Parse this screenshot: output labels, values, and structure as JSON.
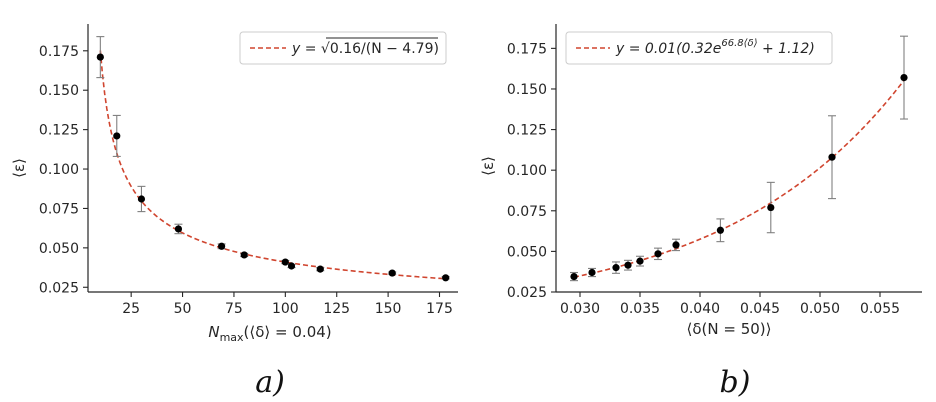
{
  "colors": {
    "fit": "#d0452f",
    "points": "#000000",
    "errorbars": "#808080",
    "axis": "#262626"
  },
  "chart_data": [
    {
      "type": "scatter",
      "panel": "a)",
      "xlabel": "N_max(⟨δ⟩ = 0.04)",
      "ylabel": "⟨ε⟩",
      "xlim": [
        4,
        184
      ],
      "ylim": [
        0.022,
        0.192
      ],
      "xticks": [
        25,
        50,
        75,
        100,
        125,
        150,
        175
      ],
      "xtick_labels": [
        "25",
        "50",
        "75",
        "100",
        "125",
        "150",
        "175"
      ],
      "yticks": [
        0.025,
        0.05,
        0.075,
        0.1,
        0.125,
        0.15,
        0.175
      ],
      "ytick_labels": [
        "0.025",
        "0.050",
        "0.075",
        "0.100",
        "0.125",
        "0.150",
        "0.175"
      ],
      "legend_position": "top-right",
      "legend_label": "y = √0.16/(N − 4.79)",
      "fit": {
        "formula": "sqrt(0.16/(N-4.79))",
        "a": 0.16,
        "b": 4.79
      },
      "points": [
        {
          "x": 10,
          "y": 0.171,
          "err": 0.013
        },
        {
          "x": 18,
          "y": 0.121,
          "err": 0.013
        },
        {
          "x": 30,
          "y": 0.081,
          "err": 0.008
        },
        {
          "x": 48,
          "y": 0.062,
          "err": 0.003
        },
        {
          "x": 69,
          "y": 0.051,
          "err": 0.0015
        },
        {
          "x": 80,
          "y": 0.0455,
          "err": 0.001
        },
        {
          "x": 100,
          "y": 0.041,
          "err": 0.001
        },
        {
          "x": 103,
          "y": 0.0385,
          "err": 0.001
        },
        {
          "x": 117,
          "y": 0.0365,
          "err": 0.001
        },
        {
          "x": 152,
          "y": 0.034,
          "err": 0.0007
        },
        {
          "x": 178,
          "y": 0.031,
          "err": 0.0007
        }
      ]
    },
    {
      "type": "scatter",
      "panel": "b)",
      "xlabel": "⟨δ(N = 50)⟩",
      "ylabel": "⟨ε⟩",
      "xlim": [
        0.028,
        0.0585
      ],
      "ylim": [
        0.025,
        0.19
      ],
      "xticks": [
        0.03,
        0.035,
        0.04,
        0.045,
        0.05,
        0.055
      ],
      "xtick_labels": [
        "0.030",
        "0.035",
        "0.040",
        "0.045",
        "0.050",
        "0.055"
      ],
      "yticks": [
        0.025,
        0.05,
        0.075,
        0.1,
        0.125,
        0.15,
        0.175
      ],
      "ytick_labels": [
        "0.025",
        "0.050",
        "0.075",
        "0.100",
        "0.125",
        "0.150",
        "0.175"
      ],
      "legend_position": "top-left",
      "legend_label": "y = 0.01(0.32e^{66.8⟨δ⟩} + 1.12)",
      "fit": {
        "formula": "0.01*(0.32*exp(66.8*d)+1.12)",
        "c": 0.01,
        "a": 0.32,
        "k": 66.8,
        "b": 1.12
      },
      "points": [
        {
          "x": 0.0295,
          "y": 0.0345,
          "err": 0.0025
        },
        {
          "x": 0.031,
          "y": 0.037,
          "err": 0.0025
        },
        {
          "x": 0.033,
          "y": 0.04,
          "err": 0.0035
        },
        {
          "x": 0.034,
          "y": 0.0415,
          "err": 0.003
        },
        {
          "x": 0.035,
          "y": 0.044,
          "err": 0.003
        },
        {
          "x": 0.0365,
          "y": 0.0485,
          "err": 0.0035
        },
        {
          "x": 0.038,
          "y": 0.054,
          "err": 0.0035
        },
        {
          "x": 0.0417,
          "y": 0.063,
          "err": 0.007
        },
        {
          "x": 0.0459,
          "y": 0.077,
          "err": 0.0155
        },
        {
          "x": 0.051,
          "y": 0.108,
          "err": 0.0255
        },
        {
          "x": 0.057,
          "y": 0.157,
          "err": 0.0255
        }
      ]
    }
  ],
  "legend_a": {
    "y_eq": "y = ",
    "radical": "√",
    "radicand": "0.16/(N − 4.79)"
  },
  "legend_b": {
    "main": "y = 0.01(0.32e",
    "exponent": "66.8⟨δ⟩",
    "tail": " + 1.12)"
  },
  "labels": {
    "a_xlabel_main": "N",
    "a_xlabel_sub": "max",
    "a_xlabel_rest": "(⟨δ⟩ = 0.04)",
    "a_ylabel": "⟨ε⟩",
    "b_xlabel": "⟨δ(N = 50)⟩",
    "b_ylabel": "⟨ε⟩",
    "panel_a": "a)",
    "panel_b": "b)"
  }
}
